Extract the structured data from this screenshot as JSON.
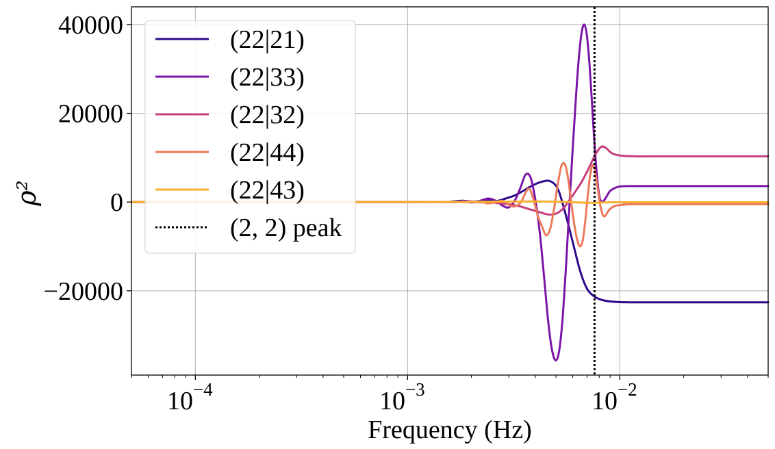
{
  "chart_data": {
    "type": "line",
    "title": "",
    "xlabel": "Frequency (Hz)",
    "ylabel": "ρ²",
    "xscale": "log",
    "xlim": [
      5e-05,
      0.05
    ],
    "ylim": [
      -39000,
      44000
    ],
    "grid": true,
    "legend_position": "upper-left",
    "x_ticks": [
      {
        "value": 0.0001,
        "base": "10",
        "exp": "−4"
      },
      {
        "value": 0.001,
        "base": "10",
        "exp": "−3"
      },
      {
        "value": 0.01,
        "base": "10",
        "exp": "−2"
      }
    ],
    "y_ticks": [
      {
        "value": 40000,
        "label": "40000"
      },
      {
        "value": 20000,
        "label": "20000"
      },
      {
        "value": 0,
        "label": "0"
      },
      {
        "value": -20000,
        "label": "−20000"
      }
    ],
    "series": [
      {
        "name": "(22|21)",
        "color": "#2d0a8c",
        "x": [
          5e-05,
          0.0012,
          0.0016,
          0.0018,
          0.002,
          0.0022,
          0.0024,
          0.0026,
          0.0029,
          0.0032,
          0.0035,
          0.0039,
          0.0043,
          0.0047,
          0.0051,
          0.0055,
          0.006,
          0.0065,
          0.007,
          0.0076,
          0.0083,
          0.0095,
          0.011,
          0.015,
          0.025,
          0.05
        ],
        "values": [
          0,
          0,
          100,
          300,
          100,
          200,
          500,
          200,
          800,
          1500,
          2500,
          3800,
          4600,
          4700,
          3000,
          -2000,
          -9000,
          -15500,
          -19500,
          -21300,
          -22100,
          -22500,
          -22600,
          -22600,
          -22600,
          -22600
        ]
      },
      {
        "name": "(22|33)",
        "color": "#7b14a8",
        "x": [
          5e-05,
          0.0015,
          0.0018,
          0.002,
          0.0022,
          0.0024,
          0.0026,
          0.0028,
          0.003,
          0.0032,
          0.0034,
          0.0036,
          0.0038,
          0.004,
          0.0042,
          0.0044,
          0.0046,
          0.0048,
          0.005,
          0.0052,
          0.0054,
          0.0056,
          0.0058,
          0.006,
          0.0062,
          0.0064,
          0.0066,
          0.0068,
          0.007,
          0.0072,
          0.0074,
          0.0076,
          0.0078,
          0.008,
          0.0082,
          0.0084,
          0.0086,
          0.0088,
          0.009,
          0.0095,
          0.01,
          0.011,
          0.012,
          0.015,
          0.02,
          0.05
        ],
        "values": [
          0,
          0,
          200,
          -100,
          300,
          800,
          300,
          -800,
          -1200,
          300,
          3200,
          6200,
          5500,
          500,
          -7000,
          -17000,
          -27000,
          -33500,
          -35700,
          -33000,
          -25000,
          -13000,
          0,
          12000,
          23000,
          32000,
          38000,
          40000,
          37500,
          31000,
          22000,
          13000,
          6000,
          1500,
          0,
          300,
          1000,
          1800,
          2500,
          3200,
          3500,
          3600,
          3600,
          3600,
          3600,
          3600
        ]
      },
      {
        "name": "(22|32)",
        "color": "#c43e7f",
        "x": [
          5e-05,
          0.002,
          0.0026,
          0.003,
          0.0034,
          0.0038,
          0.0042,
          0.0046,
          0.005,
          0.0054,
          0.0058,
          0.0062,
          0.0066,
          0.007,
          0.0074,
          0.0078,
          0.0082,
          0.0086,
          0.009,
          0.0095,
          0.0105,
          0.012,
          0.015,
          0.05
        ],
        "values": [
          0,
          0,
          -200,
          -500,
          -1000,
          -1700,
          -2300,
          -2800,
          -2600,
          -1500,
          500,
          2500,
          4500,
          6800,
          9200,
          11300,
          12500,
          12200,
          11300,
          10700,
          10400,
          10300,
          10300,
          10300
        ]
      },
      {
        "name": "(22|44)",
        "color": "#ec7a5a",
        "x": [
          5e-05,
          0.0016,
          0.0024,
          0.0028,
          0.0031,
          0.0034,
          0.0037,
          0.0039,
          0.0041,
          0.0043,
          0.0045,
          0.0047,
          0.0049,
          0.0051,
          0.0053,
          0.0055,
          0.0057,
          0.0059,
          0.0061,
          0.0063,
          0.0065,
          0.0067,
          0.0069,
          0.0071,
          0.0073,
          0.0075,
          0.0077,
          0.0079,
          0.0081,
          0.0083,
          0.0085,
          0.0087,
          0.0089,
          0.0092,
          0.0096,
          0.0105,
          0.012,
          0.05
        ],
        "values": [
          0,
          0,
          -300,
          300,
          -1000,
          -200,
          3000,
          1000,
          -3000,
          -5500,
          -7500,
          -6000,
          -1500,
          4000,
          8000,
          8600,
          5500,
          0,
          -5000,
          -8500,
          -10000,
          -8500,
          -3500,
          2500,
          7000,
          8300,
          6000,
          2500,
          -800,
          -2800,
          -3200,
          -2500,
          -1800,
          -1200,
          -800,
          -600,
          -500,
          -500
        ]
      },
      {
        "name": "(22|43)",
        "color": "#f8b030",
        "x": [
          5e-05,
          0.001,
          0.002,
          0.003,
          0.004,
          0.005,
          0.006,
          0.007,
          0.008,
          0.009,
          0.01,
          0.02,
          0.05
        ],
        "values": [
          0,
          0,
          50,
          100,
          150,
          80,
          -50,
          -150,
          -120,
          -60,
          -40,
          -40,
          -40
        ]
      }
    ],
    "vlines": [
      {
        "name": "(2, 2) peak",
        "x": 0.0076,
        "color": "#000000",
        "style": "dotted"
      }
    ]
  }
}
